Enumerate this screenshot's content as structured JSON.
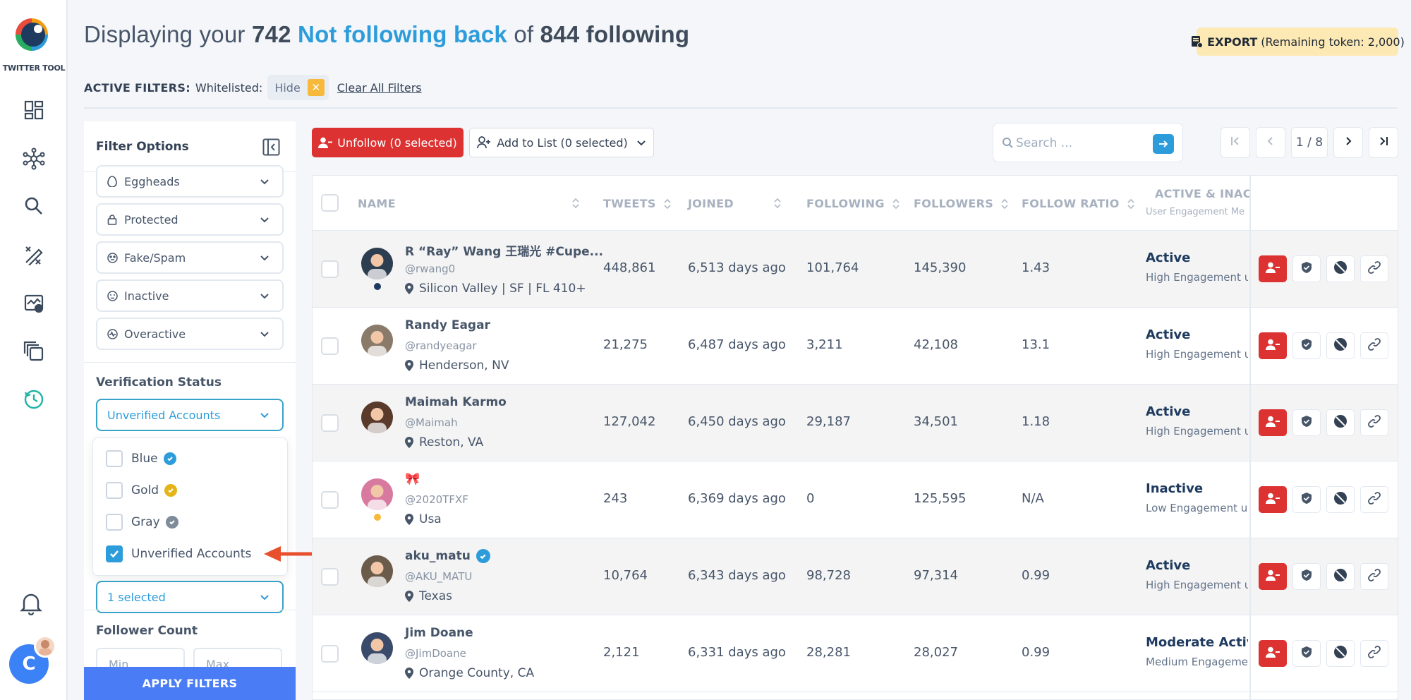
{
  "app": {
    "logo_text": "TWITTER TOOL",
    "user_initial": "C"
  },
  "header": {
    "prefix": "Displaying your",
    "count": "742",
    "accent": "Not following back",
    "mid": "of",
    "total": "844 following",
    "export_label": "EXPORT",
    "export_note": "(Remaining token: 2,000)"
  },
  "filters_bar": {
    "label": "ACTIVE FILTERS:",
    "whitelisted": "Whitelisted:",
    "chip": "Hide",
    "clear": "Clear All Filters"
  },
  "panel": {
    "title": "Filter Options",
    "selects": [
      {
        "label": "Eggheads",
        "icon": "egg-icon"
      },
      {
        "label": "Protected",
        "icon": "lock-icon"
      },
      {
        "label": "Fake/Spam",
        "icon": "mask-icon"
      },
      {
        "label": "Inactive",
        "icon": "sleep-face-icon"
      },
      {
        "label": "Overactive",
        "icon": "pulse-icon"
      }
    ],
    "verification_title": "Verification Status",
    "verification_value": "Unverified Accounts",
    "options": [
      {
        "label": "Blue",
        "checked": false,
        "color": "#2d9cdb"
      },
      {
        "label": "Gold",
        "checked": false,
        "color": "#e5b416"
      },
      {
        "label": "Gray",
        "checked": false,
        "color": "#7f8c99"
      },
      {
        "label": "Unverified Accounts",
        "checked": true
      }
    ],
    "hidden_select_value": "1 selected",
    "follower_title": "Follower Count",
    "min_placeholder": "Min",
    "max_placeholder": "Max",
    "apply": "APPLY FILTERS"
  },
  "toolbar": {
    "unfollow": "Unfollow (0 selected)",
    "add_list": "Add to List (0 selected)",
    "search_placeholder": "Search ...",
    "page": "1 / 8"
  },
  "table": {
    "headers": {
      "name": "NAME",
      "tweets": "TWEETS",
      "joined": "JOINED",
      "following": "FOLLOWING",
      "followers": "FOLLOWERS",
      "ratio": "FOLLOW RATIO",
      "activity": "ACTIVE & INACT",
      "activity_sub": "User Engagement Me"
    },
    "rows": [
      {
        "name": "R “Ray” Wang 王瑞光 #Cupe...",
        "handle": "@rwang0",
        "location": "Silicon Valley | SF | FL 410+",
        "tweets": "448,861",
        "joined": "6,513 days ago",
        "following": "101,764",
        "followers": "145,390",
        "ratio": "1.43",
        "status": "Active",
        "status_sub": "High Engagement u",
        "dot": "#1e3a5f",
        "avatar_color": "#2c3e50"
      },
      {
        "name": "Randy Eagar",
        "handle": "@randyeagar",
        "location": "Henderson, NV",
        "tweets": "21,275",
        "joined": "6,487 days ago",
        "following": "3,211",
        "followers": "42,108",
        "ratio": "13.1",
        "status": "Active",
        "status_sub": "High Engagement u",
        "dot": "",
        "avatar_color": "#8a7a6a"
      },
      {
        "name": "Maimah Karmo",
        "handle": "@Maimah",
        "location": "Reston, VA",
        "tweets": "127,042",
        "joined": "6,450 days ago",
        "following": "29,187",
        "followers": "34,501",
        "ratio": "1.18",
        "status": "Active",
        "status_sub": "High Engagement u",
        "dot": "",
        "avatar_color": "#5a3a2a"
      },
      {
        "name": "🎀",
        "handle": "@2020TFXF",
        "location": "Usa",
        "tweets": "243",
        "joined": "6,369 days ago",
        "following": "0",
        "followers": "125,595",
        "ratio": "N/A",
        "status": "Inactive",
        "status_sub": "Low Engagement u",
        "dot": "#f6b93b",
        "avatar_color": "#d87aa0"
      },
      {
        "name": "aku_matu",
        "handle": "@AKU_MATU",
        "location": "Texas",
        "tweets": "10,764",
        "joined": "6,343 days ago",
        "following": "98,728",
        "followers": "97,314",
        "ratio": "0.99",
        "status": "Active",
        "status_sub": "High Engagement u",
        "dot": "",
        "avatar_color": "#6b5b4b",
        "verified": true
      },
      {
        "name": "Jim Doane",
        "handle": "@JimDoane",
        "location": "Orange County, CA",
        "tweets": "2,121",
        "joined": "6,331 days ago",
        "following": "28,281",
        "followers": "28,027",
        "ratio": "0.99",
        "status": "Moderate Active",
        "status_sub": "Medium Engageme",
        "dot": "",
        "avatar_color": "#3a4a6a"
      }
    ]
  },
  "colors": {
    "accent": "#2d9cdb",
    "danger": "#dc3232",
    "apply": "#4a7cf5",
    "export_bg": "#fde9b4"
  }
}
